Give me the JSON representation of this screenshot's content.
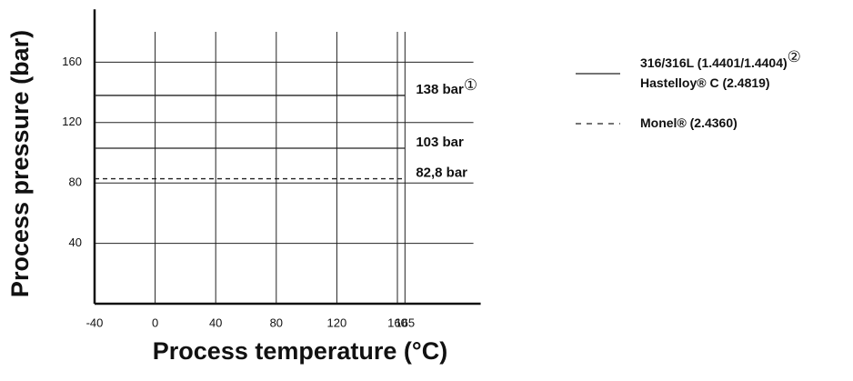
{
  "chart_data": {
    "type": "line",
    "xlabel": "Process temperature (°C)",
    "ylabel": "Process pressure (bar)",
    "xlim": [
      -40,
      215
    ],
    "ylim": [
      0,
      195
    ],
    "xticks": [
      -40,
      0,
      40,
      80,
      120,
      160,
      165
    ],
    "yticks": [
      40,
      80,
      120,
      160
    ],
    "grid": true,
    "series": [
      {
        "x": [
          -40,
          165
        ],
        "values": [
          138,
          138
        ],
        "value_labels": [
          null,
          "138 bar"
        ],
        "note": "①",
        "dash": false,
        "color": "#222222"
      },
      {
        "x": [
          -40,
          165
        ],
        "values": [
          103,
          103
        ],
        "value_labels": [
          null,
          "103 bar"
        ],
        "dash": false,
        "color": "#222222"
      },
      {
        "x": [
          -40,
          165
        ],
        "values": [
          82.8,
          82.8
        ],
        "value_labels": [
          null,
          "82,8 bar"
        ],
        "dash": true,
        "color": "#222222"
      }
    ],
    "legend": [
      {
        "lines": [
          "316/316L (1.4401/1.4404)",
          "Hastelloy® C (2.4819)"
        ],
        "note": "②",
        "dash": false
      },
      {
        "lines": [
          "Monel® (2.4360)"
        ],
        "dash": true
      }
    ]
  }
}
